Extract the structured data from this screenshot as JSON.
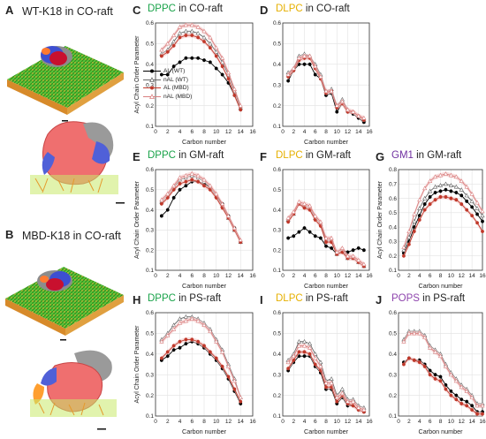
{
  "panel_labels": {
    "A": "A",
    "B": "B",
    "C": "C",
    "D": "D",
    "E": "E",
    "F": "F",
    "G": "G",
    "H": "H",
    "I": "I",
    "J": "J"
  },
  "left_titles": {
    "A": "WT-K18 in CO-raft",
    "B": "MBD-K18 in CO-raft"
  },
  "colors": {
    "DPPC": "#1aa34a",
    "DLPC": "#e6b000",
    "GM1": "#7030a0",
    "POPS": "#8e44ad",
    "AL_WT": "#000000",
    "nAL_WT": "#666666",
    "AL_MBD": "#c0392b",
    "nAL_MBD": "#d98080",
    "error_band": "#f3c7c7"
  },
  "legend": [
    "AL (WT)",
    "nAL (WT)",
    "AL (MBD)",
    "nAL (MBD)"
  ],
  "axis_text": {
    "xlabel": "Carbon number",
    "ylabel": "Acyl Chain Order Parameter"
  },
  "chart_data": [
    {
      "id": "C",
      "type": "line",
      "title_lipid": "DPPC",
      "title_rest": " in CO-raft",
      "lipid_color": "#1aa34a",
      "xlabel": "Carbon number",
      "ylabel": "Acyl Chain Order Parameter",
      "xlim": [
        0,
        16
      ],
      "ylim": [
        0.1,
        0.6
      ],
      "xticks": [
        0,
        2,
        4,
        6,
        8,
        10,
        12,
        14,
        16
      ],
      "yticks": [
        0.1,
        0.2,
        0.3,
        0.4,
        0.5,
        0.6
      ],
      "grid": true,
      "legend_position": "lower-left",
      "x": [
        1,
        2,
        3,
        4,
        5,
        6,
        7,
        8,
        9,
        10,
        11,
        12,
        13,
        14
      ],
      "series": [
        {
          "name": "AL (WT)",
          "values": [
            0.35,
            0.35,
            0.39,
            0.41,
            0.43,
            0.43,
            0.43,
            0.42,
            0.41,
            0.38,
            0.35,
            0.31,
            0.25,
            0.18
          ]
        },
        {
          "name": "nAL (WT)",
          "values": [
            0.45,
            0.47,
            0.51,
            0.55,
            0.56,
            0.56,
            0.55,
            0.53,
            0.5,
            0.46,
            0.41,
            0.35,
            0.27,
            0.19
          ]
        },
        {
          "name": "AL (MBD)",
          "values": [
            0.44,
            0.46,
            0.49,
            0.53,
            0.54,
            0.54,
            0.53,
            0.51,
            0.48,
            0.44,
            0.39,
            0.33,
            0.25,
            0.18
          ]
        },
        {
          "name": "nAL (MBD)",
          "values": [
            0.47,
            0.5,
            0.54,
            0.58,
            0.59,
            0.59,
            0.58,
            0.56,
            0.53,
            0.48,
            0.43,
            0.36,
            0.28,
            0.2
          ]
        }
      ]
    },
    {
      "id": "D",
      "type": "line",
      "title_lipid": "DLPC",
      "title_rest": " in CO-raft",
      "lipid_color": "#e6b000",
      "xlabel": "Carbon number",
      "ylabel": "",
      "xlim": [
        0,
        16
      ],
      "ylim": [
        0.1,
        0.6
      ],
      "xticks": [
        0,
        2,
        4,
        6,
        8,
        10,
        12,
        14,
        16
      ],
      "yticks": [
        0.1,
        0.2,
        0.3,
        0.4,
        0.5,
        0.6
      ],
      "grid": true,
      "x": [
        1,
        2,
        3,
        4,
        5,
        6,
        7,
        8,
        9,
        10,
        11,
        12,
        13,
        14,
        15
      ],
      "series": [
        {
          "name": "AL (WT)",
          "values": [
            0.32,
            0.37,
            0.4,
            0.4,
            0.4,
            0.35,
            0.33,
            0.25,
            0.26,
            0.17,
            0.21,
            0.17,
            0.16,
            0.14,
            0.12
          ]
        },
        {
          "name": "nAL (WT)",
          "values": [
            0.36,
            0.38,
            0.44,
            0.45,
            0.44,
            0.4,
            0.35,
            0.27,
            0.28,
            0.2,
            0.23,
            0.18,
            0.17,
            0.15,
            0.13
          ]
        },
        {
          "name": "AL (MBD)",
          "values": [
            0.34,
            0.37,
            0.42,
            0.43,
            0.43,
            0.38,
            0.33,
            0.26,
            0.27,
            0.19,
            0.21,
            0.17,
            0.17,
            0.15,
            0.13
          ]
        },
        {
          "name": "nAL (MBD)",
          "values": [
            0.35,
            0.38,
            0.43,
            0.44,
            0.44,
            0.39,
            0.34,
            0.27,
            0.27,
            0.2,
            0.22,
            0.18,
            0.17,
            0.15,
            0.14
          ]
        }
      ]
    },
    {
      "id": "E",
      "type": "line",
      "title_lipid": "DPPC",
      "title_rest": " in GM-raft",
      "lipid_color": "#1aa34a",
      "xlabel": "Carbon number",
      "ylabel": "Acyl Chain Order Parameter",
      "xlim": [
        0,
        16
      ],
      "ylim": [
        0.1,
        0.6
      ],
      "xticks": [
        0,
        2,
        4,
        6,
        8,
        10,
        12,
        14,
        16
      ],
      "yticks": [
        0.1,
        0.2,
        0.3,
        0.4,
        0.5,
        0.6
      ],
      "grid": true,
      "x": [
        1,
        2,
        3,
        4,
        5,
        6,
        7,
        8,
        9,
        10,
        11,
        12,
        13,
        14
      ],
      "series": [
        {
          "name": "AL (WT)",
          "values": [
            0.37,
            0.4,
            0.46,
            0.5,
            0.52,
            0.54,
            0.54,
            0.53,
            0.51,
            0.47,
            0.43,
            0.37,
            0.31,
            0.24
          ]
        },
        {
          "name": "nAL (WT)",
          "values": [
            0.44,
            0.47,
            0.51,
            0.55,
            0.56,
            0.57,
            0.56,
            0.54,
            0.51,
            0.47,
            0.42,
            0.36,
            0.3,
            0.24
          ]
        },
        {
          "name": "AL (MBD)",
          "values": [
            0.43,
            0.46,
            0.5,
            0.53,
            0.54,
            0.55,
            0.54,
            0.52,
            0.5,
            0.46,
            0.41,
            0.36,
            0.3,
            0.24
          ]
        },
        {
          "name": "nAL (MBD)",
          "values": [
            0.45,
            0.48,
            0.52,
            0.56,
            0.57,
            0.58,
            0.57,
            0.55,
            0.52,
            0.48,
            0.43,
            0.37,
            0.31,
            0.25
          ]
        }
      ]
    },
    {
      "id": "F",
      "type": "line",
      "title_lipid": "DLPC",
      "title_rest": " in GM-raft",
      "lipid_color": "#e6b000",
      "xlabel": "Carbon number",
      "ylabel": "",
      "xlim": [
        0,
        16
      ],
      "ylim": [
        0.1,
        0.6
      ],
      "xticks": [
        0,
        2,
        4,
        6,
        8,
        10,
        12,
        14,
        16
      ],
      "yticks": [
        0.1,
        0.2,
        0.3,
        0.4,
        0.5,
        0.6
      ],
      "grid": true,
      "x": [
        1,
        2,
        3,
        4,
        5,
        6,
        7,
        8,
        9,
        10,
        11,
        12,
        13,
        14,
        15
      ],
      "series": [
        {
          "name": "AL (WT)",
          "values": [
            0.26,
            0.27,
            0.29,
            0.31,
            0.29,
            0.27,
            0.26,
            0.22,
            0.21,
            0.18,
            0.2,
            0.19,
            0.2,
            0.21,
            0.2
          ]
        },
        {
          "name": "nAL (WT)",
          "values": [
            0.35,
            0.38,
            0.43,
            0.42,
            0.41,
            0.36,
            0.33,
            0.25,
            0.25,
            0.18,
            0.2,
            0.16,
            0.16,
            0.14,
            0.12
          ]
        },
        {
          "name": "AL (MBD)",
          "values": [
            0.34,
            0.38,
            0.43,
            0.41,
            0.4,
            0.35,
            0.32,
            0.24,
            0.24,
            0.18,
            0.19,
            0.16,
            0.16,
            0.14,
            0.12
          ]
        },
        {
          "name": "nAL (MBD)",
          "values": [
            0.36,
            0.39,
            0.44,
            0.43,
            0.42,
            0.37,
            0.34,
            0.26,
            0.26,
            0.19,
            0.21,
            0.17,
            0.17,
            0.15,
            0.13
          ]
        }
      ]
    },
    {
      "id": "G",
      "type": "line",
      "title_lipid": "GM1",
      "title_rest": " in GM-raft",
      "lipid_color": "#7030a0",
      "xlabel": "Carbon number",
      "ylabel": "Acyl Chain Order Parameter",
      "xlim": [
        0,
        16
      ],
      "ylim": [
        0.1,
        0.8
      ],
      "xticks": [
        0,
        2,
        4,
        6,
        8,
        10,
        12,
        14,
        16
      ],
      "yticks": [
        0.1,
        0.2,
        0.3,
        0.4,
        0.5,
        0.6,
        0.7,
        0.8
      ],
      "grid": true,
      "x": [
        1,
        2,
        3,
        4,
        5,
        6,
        7,
        8,
        9,
        10,
        11,
        12,
        13,
        14,
        15,
        16
      ],
      "series": [
        {
          "name": "AL (WT)",
          "values": [
            0.22,
            0.3,
            0.4,
            0.48,
            0.56,
            0.61,
            0.64,
            0.65,
            0.66,
            0.65,
            0.64,
            0.62,
            0.58,
            0.54,
            0.49,
            0.44
          ]
        },
        {
          "name": "nAL (WT)",
          "values": [
            0.24,
            0.33,
            0.44,
            0.53,
            0.6,
            0.65,
            0.68,
            0.69,
            0.7,
            0.69,
            0.68,
            0.66,
            0.62,
            0.58,
            0.53,
            0.48
          ]
        },
        {
          "name": "AL (MBD)",
          "values": [
            0.2,
            0.28,
            0.37,
            0.45,
            0.52,
            0.56,
            0.59,
            0.61,
            0.61,
            0.6,
            0.59,
            0.56,
            0.52,
            0.48,
            0.43,
            0.37
          ]
        },
        {
          "name": "nAL (MBD)",
          "values": [
            0.26,
            0.37,
            0.49,
            0.59,
            0.67,
            0.72,
            0.75,
            0.76,
            0.77,
            0.76,
            0.75,
            0.72,
            0.68,
            0.63,
            0.57,
            0.51
          ]
        }
      ]
    },
    {
      "id": "H",
      "type": "line",
      "title_lipid": "DPPC",
      "title_rest": " in PS-raft",
      "lipid_color": "#1aa34a",
      "xlabel": "Carbon number",
      "ylabel": "Acyl Chain Order Parameter",
      "xlim": [
        0,
        16
      ],
      "ylim": [
        0.1,
        0.6
      ],
      "xticks": [
        0,
        2,
        4,
        6,
        8,
        10,
        12,
        14,
        16
      ],
      "yticks": [
        0.1,
        0.2,
        0.3,
        0.4,
        0.5,
        0.6
      ],
      "grid": true,
      "x": [
        1,
        2,
        3,
        4,
        5,
        6,
        7,
        8,
        9,
        10,
        11,
        12,
        13,
        14
      ],
      "series": [
        {
          "name": "AL (WT)",
          "values": [
            0.37,
            0.39,
            0.42,
            0.43,
            0.45,
            0.46,
            0.45,
            0.43,
            0.4,
            0.37,
            0.33,
            0.28,
            0.22,
            0.16
          ]
        },
        {
          "name": "nAL (WT)",
          "values": [
            0.47,
            0.5,
            0.54,
            0.57,
            0.58,
            0.58,
            0.57,
            0.55,
            0.52,
            0.47,
            0.42,
            0.35,
            0.28,
            0.19
          ]
        },
        {
          "name": "AL (MBD)",
          "values": [
            0.38,
            0.41,
            0.44,
            0.46,
            0.47,
            0.47,
            0.46,
            0.44,
            0.41,
            0.38,
            0.34,
            0.29,
            0.23,
            0.17
          ]
        },
        {
          "name": "nAL (MBD)",
          "values": [
            0.46,
            0.49,
            0.52,
            0.55,
            0.56,
            0.57,
            0.56,
            0.54,
            0.51,
            0.46,
            0.41,
            0.34,
            0.27,
            0.19
          ]
        }
      ]
    },
    {
      "id": "I",
      "type": "line",
      "title_lipid": "DLPC",
      "title_rest": " in PS-raft",
      "lipid_color": "#e6b000",
      "xlabel": "Carbon number",
      "ylabel": "",
      "xlim": [
        0,
        16
      ],
      "ylim": [
        0.1,
        0.6
      ],
      "xticks": [
        0,
        2,
        4,
        6,
        8,
        10,
        12,
        14,
        16
      ],
      "yticks": [
        0.1,
        0.2,
        0.3,
        0.4,
        0.5,
        0.6
      ],
      "grid": true,
      "x": [
        1,
        2,
        3,
        4,
        5,
        6,
        7,
        8,
        9,
        10,
        11,
        12,
        13,
        14,
        15
      ],
      "series": [
        {
          "name": "AL (WT)",
          "values": [
            0.32,
            0.36,
            0.39,
            0.39,
            0.39,
            0.34,
            0.31,
            0.23,
            0.23,
            0.16,
            0.19,
            0.15,
            0.15,
            0.13,
            0.12
          ]
        },
        {
          "name": "nAL (WT)",
          "values": [
            0.37,
            0.4,
            0.46,
            0.46,
            0.45,
            0.4,
            0.36,
            0.27,
            0.28,
            0.2,
            0.23,
            0.18,
            0.18,
            0.15,
            0.14
          ]
        },
        {
          "name": "AL (MBD)",
          "values": [
            0.33,
            0.37,
            0.41,
            0.41,
            0.4,
            0.35,
            0.32,
            0.24,
            0.24,
            0.17,
            0.2,
            0.16,
            0.15,
            0.13,
            0.12
          ]
        },
        {
          "name": "nAL (MBD)",
          "values": [
            0.36,
            0.39,
            0.44,
            0.44,
            0.43,
            0.38,
            0.34,
            0.26,
            0.26,
            0.19,
            0.21,
            0.17,
            0.17,
            0.14,
            0.13
          ]
        }
      ]
    },
    {
      "id": "J",
      "type": "line",
      "title_lipid": "POPS",
      "title_rest": " in PS-raft",
      "lipid_color": "#8e44ad",
      "xlabel": "Carbon number",
      "ylabel": "",
      "xlim": [
        0,
        16
      ],
      "ylim": [
        0.1,
        0.6
      ],
      "xticks": [
        0,
        2,
        4,
        6,
        8,
        10,
        12,
        14,
        16
      ],
      "yticks": [
        0.1,
        0.2,
        0.3,
        0.4,
        0.5,
        0.6
      ],
      "grid": true,
      "x": [
        1,
        2,
        3,
        4,
        5,
        6,
        7,
        8,
        9,
        10,
        11,
        12,
        13,
        14,
        15,
        16
      ],
      "series": [
        {
          "name": "AL (WT)",
          "values": [
            0.36,
            0.38,
            0.37,
            0.37,
            0.35,
            0.32,
            0.3,
            0.29,
            0.25,
            0.22,
            0.2,
            0.18,
            0.17,
            0.15,
            0.12,
            0.12
          ]
        },
        {
          "name": "nAL (WT)",
          "values": [
            0.47,
            0.51,
            0.51,
            0.51,
            0.49,
            0.44,
            0.42,
            0.4,
            0.35,
            0.31,
            0.28,
            0.25,
            0.23,
            0.2,
            0.16,
            0.16
          ]
        },
        {
          "name": "AL (MBD)",
          "values": [
            0.35,
            0.38,
            0.37,
            0.36,
            0.34,
            0.3,
            0.28,
            0.27,
            0.23,
            0.2,
            0.18,
            0.16,
            0.15,
            0.13,
            0.11,
            0.11
          ]
        },
        {
          "name": "nAL (MBD)",
          "values": [
            0.46,
            0.5,
            0.5,
            0.5,
            0.48,
            0.43,
            0.41,
            0.39,
            0.34,
            0.3,
            0.27,
            0.24,
            0.22,
            0.19,
            0.15,
            0.15
          ]
        }
      ]
    }
  ]
}
